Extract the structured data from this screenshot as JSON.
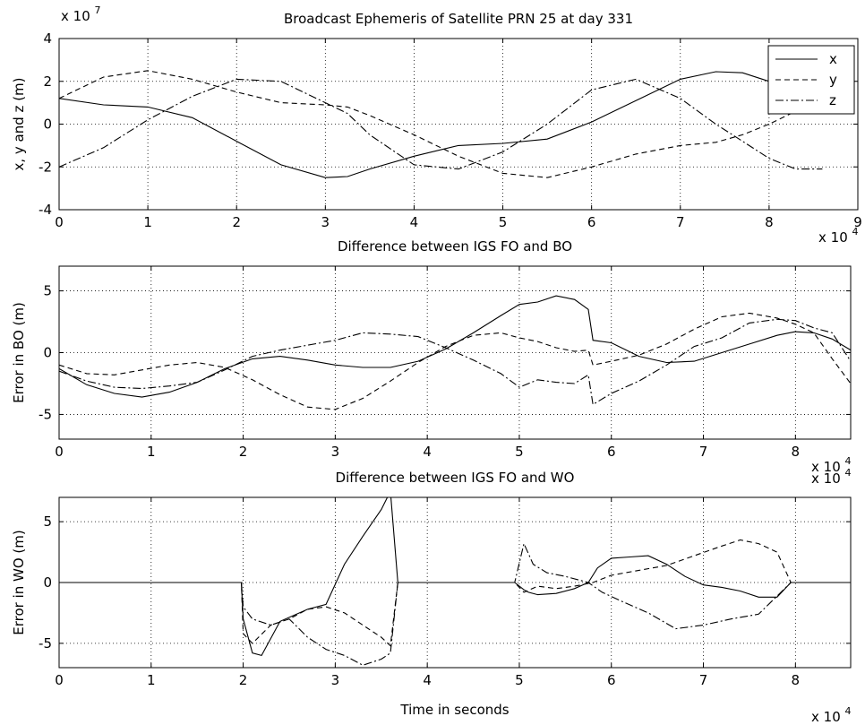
{
  "chart_data": [
    {
      "type": "line",
      "title": "Broadcast Ephemeris of Satellite PRN 25 at day 331",
      "xlabel": "",
      "ylabel": "x, y and z (m)",
      "x_multiplier": {
        "base": "x 10",
        "exp": "4"
      },
      "y_multiplier": {
        "base": "x 10",
        "exp": "7"
      },
      "xlim": [
        0,
        90000
      ],
      "ylim": [
        -4,
        4
      ],
      "xticks": [
        0,
        1,
        2,
        3,
        4,
        5,
        6,
        7,
        8,
        9
      ],
      "yticks": [
        -4,
        -2,
        0,
        2,
        4
      ],
      "grid": true,
      "legend": {
        "position": "top-right",
        "entries": [
          "x",
          "y",
          "z"
        ]
      },
      "x": [
        0,
        5000,
        10000,
        15000,
        20000,
        25000,
        30000,
        32500,
        35000,
        40000,
        45000,
        50000,
        55000,
        60000,
        65000,
        70000,
        74000,
        77000,
        80000,
        83000,
        86000
      ],
      "series": [
        {
          "name": "x",
          "style": "solid",
          "values": [
            1.2,
            0.9,
            0.8,
            0.3,
            -0.8,
            -1.9,
            -2.5,
            -2.45,
            -2.1,
            -1.5,
            -1.0,
            -0.9,
            -0.7,
            0.1,
            1.1,
            2.1,
            2.45,
            2.4,
            2.0,
            1.4,
            0.6
          ]
        },
        {
          "name": "y",
          "style": "dashed",
          "values": [
            1.2,
            2.2,
            2.5,
            2.1,
            1.5,
            1.0,
            0.9,
            0.8,
            0.4,
            -0.5,
            -1.5,
            -2.3,
            -2.5,
            -2.0,
            -1.4,
            -1.0,
            -0.85,
            -0.5,
            0.0,
            0.6,
            1.2
          ]
        },
        {
          "name": "z",
          "style": "dashdot",
          "values": [
            -2.0,
            -1.1,
            0.2,
            1.3,
            2.1,
            2.0,
            1.0,
            0.5,
            -0.5,
            -1.9,
            -2.1,
            -1.3,
            0.0,
            1.6,
            2.1,
            1.2,
            0.0,
            -0.8,
            -1.6,
            -2.1,
            -2.1
          ]
        }
      ]
    },
    {
      "type": "line",
      "title": "Difference between IGS FO and BO",
      "xlabel": "",
      "ylabel": "Error in BO (m)",
      "x_multiplier": {
        "base": "x 10",
        "exp": "4"
      },
      "xlim": [
        0,
        86000
      ],
      "ylim": [
        -7,
        7
      ],
      "xticks": [
        0,
        1,
        2,
        3,
        4,
        5,
        6,
        7,
        8
      ],
      "yticks": [
        -5,
        0,
        5
      ],
      "grid": true,
      "x": [
        0,
        3000,
        6000,
        9000,
        12000,
        15000,
        18000,
        21000,
        24000,
        27000,
        30000,
        33000,
        36000,
        39000,
        42000,
        45000,
        48000,
        50000,
        52000,
        54000,
        56000,
        57500,
        58000,
        60000,
        63000,
        66000,
        69000,
        72000,
        75000,
        78000,
        80000,
        82000,
        84000,
        86000
      ],
      "series": [
        {
          "name": "x",
          "style": "solid",
          "values": [
            -1.3,
            -2.6,
            -3.3,
            -3.6,
            -3.2,
            -2.4,
            -1.3,
            -0.5,
            -0.3,
            -0.6,
            -1.0,
            -1.2,
            -1.2,
            -0.7,
            0.3,
            1.6,
            3.0,
            3.9,
            4.1,
            4.6,
            4.3,
            3.5,
            1.0,
            0.8,
            -0.3,
            -0.8,
            -0.7,
            0.0,
            0.7,
            1.4,
            1.7,
            1.6,
            1.1,
            0.2
          ]
        },
        {
          "name": "y",
          "style": "dashed",
          "values": [
            -1.0,
            -1.7,
            -1.8,
            -1.4,
            -1.0,
            -0.8,
            -1.2,
            -2.2,
            -3.4,
            -4.4,
            -4.6,
            -3.7,
            -2.3,
            -0.8,
            0.5,
            1.4,
            1.6,
            1.2,
            0.9,
            0.4,
            0.1,
            0.2,
            -1.0,
            -0.7,
            -0.2,
            0.7,
            1.9,
            2.9,
            3.2,
            2.8,
            2.3,
            1.6,
            -0.5,
            -2.5
          ]
        },
        {
          "name": "z",
          "style": "dashdot",
          "values": [
            -1.5,
            -2.3,
            -2.8,
            -2.9,
            -2.7,
            -2.4,
            -1.4,
            -0.3,
            0.2,
            0.6,
            1.0,
            1.6,
            1.5,
            1.3,
            0.4,
            -0.6,
            -1.7,
            -2.8,
            -2.2,
            -2.4,
            -2.5,
            -1.8,
            -4.2,
            -3.3,
            -2.3,
            -1.0,
            0.5,
            1.2,
            2.4,
            2.7,
            2.6,
            2.0,
            1.6,
            -0.7
          ]
        }
      ]
    },
    {
      "type": "line",
      "title": "Difference between IGS FO and WO",
      "xlabel": "Time in seconds",
      "ylabel": "Error in WO (m)",
      "x_multiplier_top": {
        "base": "x 10",
        "exp": "4"
      },
      "x_multiplier": {
        "base": "x 10",
        "exp": "4"
      },
      "xlim": [
        0,
        86000
      ],
      "ylim": [
        -7,
        7
      ],
      "xticks": [
        0,
        1,
        2,
        3,
        4,
        5,
        6,
        7,
        8
      ],
      "yticks": [
        -5,
        0,
        5
      ],
      "grid": true,
      "series": [
        {
          "name": "x",
          "style": "solid",
          "x": [
            0,
            19800,
            20000,
            21000,
            22000,
            24000,
            27000,
            29000,
            31000,
            33000,
            35000,
            36000,
            36800,
            49500,
            50500,
            51000,
            52000,
            54000,
            56000,
            57500,
            58500,
            60000,
            62000,
            64000,
            66000,
            68000,
            70000,
            72000,
            74000,
            76000,
            78000,
            79500,
            86000
          ],
          "values": [
            0,
            0,
            -3,
            -5.8,
            -6.0,
            -3.2,
            -2.2,
            -1.8,
            1.5,
            3.8,
            6.0,
            7.5,
            0,
            0,
            -0.6,
            -0.8,
            -1.0,
            -0.9,
            -0.5,
            0.0,
            1.2,
            2.0,
            2.1,
            2.2,
            1.5,
            0.5,
            -0.2,
            -0.4,
            -0.7,
            -1.2,
            -1.2,
            0,
            0
          ]
        },
        {
          "name": "y",
          "style": "dashed",
          "x": [
            0,
            19800,
            20000,
            21000,
            23000,
            25000,
            27000,
            29000,
            31000,
            33000,
            35000,
            36000,
            36800,
            49500,
            50500,
            52000,
            54000,
            56000,
            58000,
            60000,
            63000,
            66000,
            69000,
            72000,
            74000,
            76000,
            78000,
            79500,
            86000
          ],
          "values": [
            0,
            0,
            -4.2,
            -5.0,
            -3.5,
            -3.0,
            -2.2,
            -2.0,
            -2.5,
            -3.5,
            -4.5,
            -5.2,
            0,
            0,
            -0.8,
            -0.3,
            -0.5,
            -0.3,
            0.0,
            0.6,
            1.0,
            1.4,
            2.2,
            3.0,
            3.5,
            3.2,
            2.5,
            0,
            0
          ]
        },
        {
          "name": "z",
          "style": "dashdot",
          "x": [
            0,
            19800,
            20000,
            21000,
            23000,
            25000,
            27000,
            29000,
            31000,
            33000,
            35000,
            36000,
            36800,
            49500,
            50500,
            51500,
            53000,
            55000,
            57500,
            59000,
            61000,
            64000,
            67000,
            70000,
            73000,
            76000,
            79500,
            86000
          ],
          "values": [
            0,
            0,
            -2.0,
            -3.0,
            -3.5,
            -3.0,
            -4.5,
            -5.5,
            -6.0,
            -6.8,
            -6.3,
            -5.8,
            0,
            0,
            3.2,
            1.5,
            0.8,
            0.5,
            0.0,
            -0.8,
            -1.5,
            -2.5,
            -3.8,
            -3.5,
            -3.0,
            -2.6,
            0,
            0
          ]
        }
      ]
    }
  ]
}
